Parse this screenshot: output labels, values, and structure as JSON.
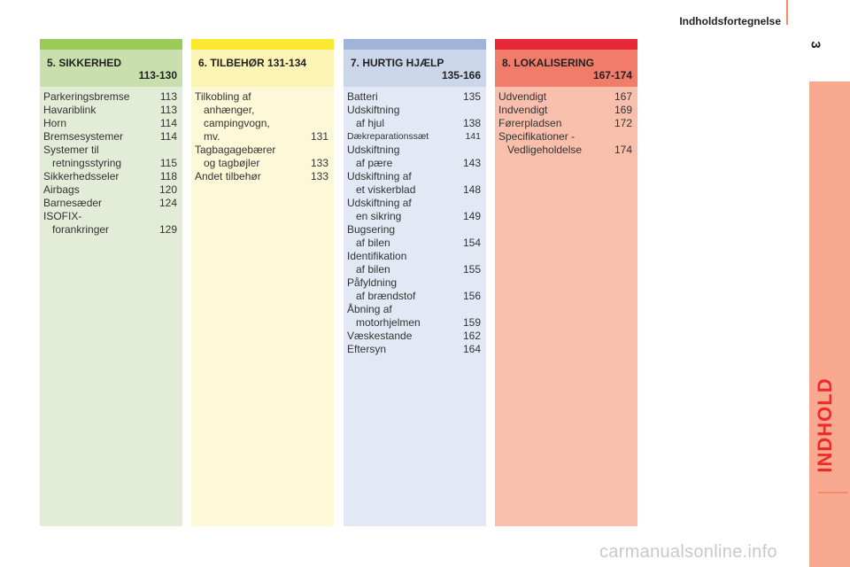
{
  "header": {
    "title": "Indholdsfortegnelse",
    "page_number": "3"
  },
  "side": {
    "label": "INDHOLD"
  },
  "columns": [
    {
      "id": "col5",
      "title": "5. SIKKERHED",
      "range": "113-130",
      "entries": [
        {
          "lines": [
            "Parkeringsbremse"
          ],
          "page": "113"
        },
        {
          "lines": [
            "Havariblink"
          ],
          "page": "113"
        },
        {
          "lines": [
            "Horn"
          ],
          "page": "114"
        },
        {
          "lines": [
            "Bremsesystemer"
          ],
          "page": "114"
        },
        {
          "lines": [
            "Systemer til",
            "retningsstyring"
          ],
          "page": "115"
        },
        {
          "lines": [
            "Sikkerhedsseler"
          ],
          "page": "118"
        },
        {
          "lines": [
            "Airbags"
          ],
          "page": "120"
        },
        {
          "lines": [
            "Barnesæder"
          ],
          "page": "124"
        },
        {
          "lines": [
            "ISOFIX-",
            "forankringer"
          ],
          "page": "129"
        }
      ]
    },
    {
      "id": "col6",
      "title": "6. TILBEHØR",
      "range": "131-134",
      "entries": [
        {
          "lines": [
            "Tilkobling af",
            "anhænger,",
            "campingvogn,",
            "mv."
          ],
          "page": "131"
        },
        {
          "lines": [
            "Tagbagagebærer",
            "og tagbøjler"
          ],
          "page": "133"
        },
        {
          "lines": [
            "Andet tilbehør"
          ],
          "page": "133"
        }
      ]
    },
    {
      "id": "col7",
      "title": "7. HURTIG HJÆLP",
      "range": "135-166",
      "entries": [
        {
          "lines": [
            "Batteri"
          ],
          "page": "135"
        },
        {
          "lines": [
            "Udskiftning",
            "af hjul"
          ],
          "page": "138"
        },
        {
          "lines": [
            "Dækreparationssæt"
          ],
          "page": "141",
          "small": true
        },
        {
          "lines": [
            "Udskiftning",
            "af pære"
          ],
          "page": "143"
        },
        {
          "lines": [
            "Udskiftning af",
            "et viskerblad"
          ],
          "page": "148"
        },
        {
          "lines": [
            "Udskiftning af",
            "en sikring"
          ],
          "page": "149"
        },
        {
          "lines": [
            "Bugsering",
            "af bilen"
          ],
          "page": "154"
        },
        {
          "lines": [
            "Identifikation",
            "af bilen"
          ],
          "page": "155"
        },
        {
          "lines": [
            "Påfyldning",
            "af brændstof"
          ],
          "page": "156"
        },
        {
          "lines": [
            "Åbning af",
            "motorhjelmen"
          ],
          "page": "159"
        },
        {
          "lines": [
            "Væskestande"
          ],
          "page": "162"
        },
        {
          "lines": [
            "Eftersyn"
          ],
          "page": "164"
        }
      ]
    },
    {
      "id": "col8",
      "title": "8. LOKALISERING",
      "range": "167-174",
      "entries": [
        {
          "lines": [
            "Udvendigt"
          ],
          "page": "167"
        },
        {
          "lines": [
            "Indvendigt"
          ],
          "page": "169"
        },
        {
          "lines": [
            "Førerpladsen"
          ],
          "page": "172"
        },
        {
          "lines": [
            "Specifikationer -",
            "Vedligeholdelse"
          ],
          "page": "174"
        }
      ]
    }
  ],
  "watermark": "carmanualsonline.info"
}
